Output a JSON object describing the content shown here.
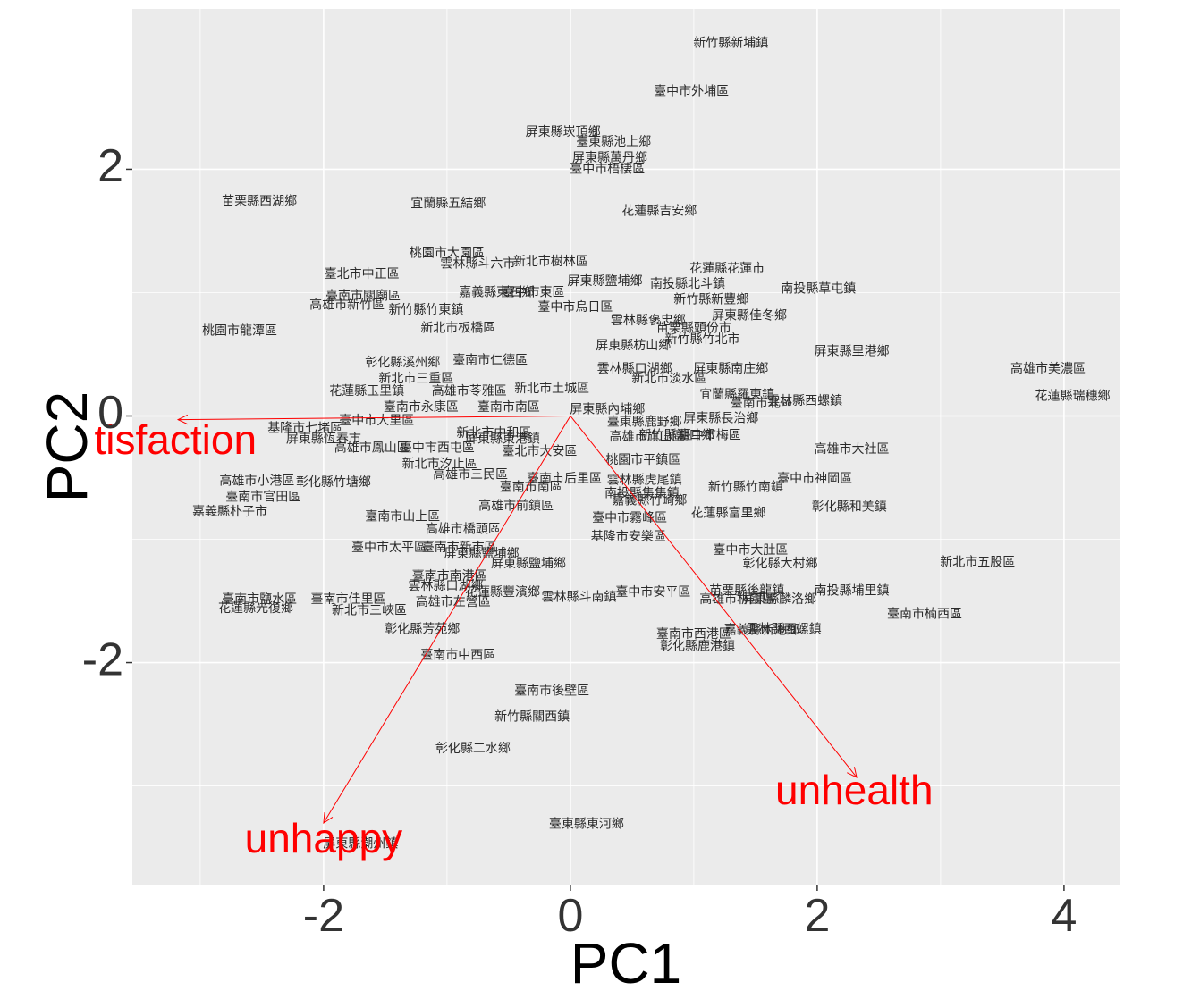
{
  "chart_data": {
    "type": "scatter",
    "xlabel": "PC1",
    "ylabel": "PC2",
    "xlim": [
      -3.55,
      4.45
    ],
    "ylim": [
      -3.8,
      3.3
    ],
    "x_ticks": [
      -2,
      0,
      2,
      4
    ],
    "y_ticks": [
      -2,
      0,
      2
    ],
    "x_minor": [
      -3,
      -1,
      1,
      3
    ],
    "y_minor": [
      -3,
      -1,
      1,
      3
    ],
    "grid": true,
    "background_color": "#ebebeb",
    "grid_color": "#ffffff",
    "arrow_color": "#ff0000",
    "text_color": "#2b2b2b",
    "tick_color": "#333333",
    "points": [
      {
        "x": 1.3,
        "y": 3.02,
        "label": "新竹縣新埔鎮"
      },
      {
        "x": 0.98,
        "y": 2.63,
        "label": "臺中市外埔區"
      },
      {
        "x": -0.06,
        "y": 2.3,
        "label": "屏東縣崁頂鄉"
      },
      {
        "x": 0.35,
        "y": 2.22,
        "label": "臺東縣池上鄉"
      },
      {
        "x": 0.32,
        "y": 2.09,
        "label": "屏東縣萬丹鄉"
      },
      {
        "x": 0.3,
        "y": 2.0,
        "label": "臺中市梧棲區"
      },
      {
        "x": -2.52,
        "y": 1.74,
        "label": "苗栗縣西湖鄉"
      },
      {
        "x": -0.99,
        "y": 1.72,
        "label": "宜蘭縣五結鄉"
      },
      {
        "x": 0.72,
        "y": 1.66,
        "label": "花蓮縣吉安鄉"
      },
      {
        "x": -1.0,
        "y": 1.32,
        "label": "桃園市大園區"
      },
      {
        "x": -0.75,
        "y": 1.23,
        "label": "雲林縣斗六市"
      },
      {
        "x": -0.16,
        "y": 1.25,
        "label": "新北市樹林區"
      },
      {
        "x": 1.27,
        "y": 1.19,
        "label": "花蓮縣花蓮市"
      },
      {
        "x": -1.69,
        "y": 1.15,
        "label": "臺北市中正區"
      },
      {
        "x": 0.28,
        "y": 1.09,
        "label": "屏東縣鹽埔鄉"
      },
      {
        "x": 0.95,
        "y": 1.07,
        "label": "南投縣北斗鎮"
      },
      {
        "x": 2.01,
        "y": 1.03,
        "label": "南投縣草屯鎮"
      },
      {
        "x": -1.68,
        "y": 0.97,
        "label": "臺南市關廟區"
      },
      {
        "x": -0.6,
        "y": 1.0,
        "label": "嘉義縣東石鄉"
      },
      {
        "x": -0.3,
        "y": 1.0,
        "label": "臺中市東區"
      },
      {
        "x": 1.14,
        "y": 0.94,
        "label": "新竹縣新豐鄉"
      },
      {
        "x": -1.81,
        "y": 0.9,
        "label": "高雄市新竹區"
      },
      {
        "x": -1.17,
        "y": 0.86,
        "label": "新竹縣竹東鎮"
      },
      {
        "x": 0.04,
        "y": 0.88,
        "label": "臺中市烏日區"
      },
      {
        "x": 1.45,
        "y": 0.81,
        "label": "屏東縣佳冬鄉"
      },
      {
        "x": 0.63,
        "y": 0.77,
        "label": "雲林縣褒忠鄉"
      },
      {
        "x": -0.91,
        "y": 0.71,
        "label": "新北市板橋區"
      },
      {
        "x": 1.0,
        "y": 0.71,
        "label": "苗栗縣頭份市"
      },
      {
        "x": -2.68,
        "y": 0.69,
        "label": "桃園市龍潭區"
      },
      {
        "x": 0.51,
        "y": 0.57,
        "label": "屏東縣枋山鄉"
      },
      {
        "x": 1.07,
        "y": 0.62,
        "label": "新竹縣竹北市"
      },
      {
        "x": 2.28,
        "y": 0.52,
        "label": "屏東縣里港鄉"
      },
      {
        "x": 3.87,
        "y": 0.38,
        "label": "高雄市美濃區"
      },
      {
        "x": -1.36,
        "y": 0.43,
        "label": "彰化縣溪州鄉"
      },
      {
        "x": -0.65,
        "y": 0.45,
        "label": "臺南市仁德區"
      },
      {
        "x": 0.52,
        "y": 0.38,
        "label": "雲林縣口湖鄉"
      },
      {
        "x": 1.3,
        "y": 0.38,
        "label": "屏東縣南庄鄉"
      },
      {
        "x": 0.8,
        "y": 0.3,
        "label": "新北市淡水區"
      },
      {
        "x": -1.25,
        "y": 0.3,
        "label": "新北市三重區"
      },
      {
        "x": 4.07,
        "y": 0.16,
        "label": "花蓮縣瑞穗鄉"
      },
      {
        "x": -1.65,
        "y": 0.2,
        "label": "花蓮縣玉里鎮"
      },
      {
        "x": -0.82,
        "y": 0.2,
        "label": "高雄市苓雅區"
      },
      {
        "x": -0.15,
        "y": 0.22,
        "label": "新北市土城區"
      },
      {
        "x": 1.35,
        "y": 0.17,
        "label": "宜蘭縣羅東鎮"
      },
      {
        "x": 1.9,
        "y": 0.12,
        "label": "雲林縣西螺鎮"
      },
      {
        "x": 1.55,
        "y": 0.1,
        "label": "臺南市北區"
      },
      {
        "x": -1.21,
        "y": 0.07,
        "label": "臺南市永康區"
      },
      {
        "x": -0.5,
        "y": 0.07,
        "label": "臺南市南區"
      },
      {
        "x": 0.3,
        "y": 0.05,
        "label": "屏東縣內埔鄉"
      },
      {
        "x": -1.57,
        "y": -0.04,
        "label": "臺中市大里區"
      },
      {
        "x": 1.22,
        "y": -0.02,
        "label": "屏東縣長治鄉"
      },
      {
        "x": 0.6,
        "y": -0.05,
        "label": "臺東縣鹿野鄉"
      },
      {
        "x": -2.15,
        "y": -0.1,
        "label": "基隆市七堵區"
      },
      {
        "x": -0.62,
        "y": -0.14,
        "label": "新北市中和區"
      },
      {
        "x": 0.86,
        "y": -0.16,
        "label": "新竹縣湖口鄉"
      },
      {
        "x": 1.13,
        "y": -0.16,
        "label": "臺中市梅區"
      },
      {
        "x": -2.0,
        "y": -0.19,
        "label": "屏東縣恆春市"
      },
      {
        "x": -0.55,
        "y": -0.19,
        "label": "屏東縣東港鎮"
      },
      {
        "x": 0.62,
        "y": -0.17,
        "label": "高雄市旗山區"
      },
      {
        "x": -1.61,
        "y": -0.26,
        "label": "高雄市鳳山區"
      },
      {
        "x": -1.08,
        "y": -0.26,
        "label": "臺中市西屯區"
      },
      {
        "x": -0.25,
        "y": -0.29,
        "label": "臺北市大安區"
      },
      {
        "x": 2.28,
        "y": -0.27,
        "label": "高雄市大社區"
      },
      {
        "x": -1.06,
        "y": -0.39,
        "label": "新北市汐止區"
      },
      {
        "x": 0.59,
        "y": -0.36,
        "label": "桃園市平鎮區"
      },
      {
        "x": -0.81,
        "y": -0.48,
        "label": "高雄市三民區"
      },
      {
        "x": -0.05,
        "y": -0.51,
        "label": "臺南市后里區"
      },
      {
        "x": 0.6,
        "y": -0.52,
        "label": "雲林縣虎尾鎮"
      },
      {
        "x": 1.98,
        "y": -0.51,
        "label": "臺中市神岡區"
      },
      {
        "x": -2.54,
        "y": -0.53,
        "label": "高雄市小港區"
      },
      {
        "x": -1.92,
        "y": -0.54,
        "label": "彰化縣竹塘鄉"
      },
      {
        "x": -0.32,
        "y": -0.58,
        "label": "臺南市南區"
      },
      {
        "x": 1.42,
        "y": -0.58,
        "label": "新竹縣竹南鎮"
      },
      {
        "x": 0.58,
        "y": -0.63,
        "label": "南投縣集集鎮"
      },
      {
        "x": -2.49,
        "y": -0.66,
        "label": "臺南市官田區"
      },
      {
        "x": 0.64,
        "y": -0.69,
        "label": "嘉義縣竹崎鄉"
      },
      {
        "x": -0.44,
        "y": -0.73,
        "label": "高雄市前鎮區"
      },
      {
        "x": 2.26,
        "y": -0.74,
        "label": "彰化縣和美鎮"
      },
      {
        "x": -2.76,
        "y": -0.78,
        "label": "嘉義縣朴子市"
      },
      {
        "x": 1.28,
        "y": -0.79,
        "label": "花蓮縣富里鄉"
      },
      {
        "x": -1.36,
        "y": -0.82,
        "label": "臺南市山上區"
      },
      {
        "x": 0.48,
        "y": -0.83,
        "label": "臺中市霧峰區"
      },
      {
        "x": -0.87,
        "y": -0.92,
        "label": "高雄市橋頭區"
      },
      {
        "x": 0.47,
        "y": -0.98,
        "label": "基隆市安樂區"
      },
      {
        "x": -1.47,
        "y": -1.07,
        "label": "臺中市太平區"
      },
      {
        "x": -0.9,
        "y": -1.07,
        "label": "臺南市新市區"
      },
      {
        "x": -0.72,
        "y": -1.12,
        "label": "屏東縣鹽埔鄉"
      },
      {
        "x": 1.46,
        "y": -1.09,
        "label": "臺中市大肚區"
      },
      {
        "x": 3.3,
        "y": -1.19,
        "label": "新北市五股區"
      },
      {
        "x": -0.34,
        "y": -1.2,
        "label": "屏東縣鹽埔鄉"
      },
      {
        "x": 1.7,
        "y": -1.2,
        "label": "彰化縣大村鄉"
      },
      {
        "x": -0.98,
        "y": -1.3,
        "label": "臺南市南港區"
      },
      {
        "x": -1.01,
        "y": -1.38,
        "label": "雲林縣口湖鄉"
      },
      {
        "x": 0.67,
        "y": -1.43,
        "label": "臺中市安平區"
      },
      {
        "x": 1.43,
        "y": -1.42,
        "label": "苗栗縣後龍鎮"
      },
      {
        "x": 2.28,
        "y": -1.42,
        "label": "南投縣埔里鎮"
      },
      {
        "x": -2.52,
        "y": -1.49,
        "label": "臺南市鹽水區"
      },
      {
        "x": -1.8,
        "y": -1.49,
        "label": "臺南市佳里區"
      },
      {
        "x": -0.55,
        "y": -1.43,
        "label": "花蓮縣豐濱鄉"
      },
      {
        "x": 0.07,
        "y": -1.47,
        "label": "雲林縣斗南鎮"
      },
      {
        "x": 1.35,
        "y": -1.49,
        "label": "高雄市林園區"
      },
      {
        "x": 1.69,
        "y": -1.49,
        "label": "屏東縣麟洛鄉"
      },
      {
        "x": -2.55,
        "y": -1.56,
        "label": "花蓮縣光復鄉"
      },
      {
        "x": -1.63,
        "y": -1.58,
        "label": "新北市三峽區"
      },
      {
        "x": -0.95,
        "y": -1.51,
        "label": "高雄市左營區"
      },
      {
        "x": 2.87,
        "y": -1.61,
        "label": "臺南市楠西區"
      },
      {
        "x": 1.55,
        "y": -1.74,
        "label": "嘉義縣新港鄉"
      },
      {
        "x": 1.73,
        "y": -1.73,
        "label": "雲林縣西螺鎮"
      },
      {
        "x": 1.0,
        "y": -1.77,
        "label": "臺南市西港區"
      },
      {
        "x": -1.2,
        "y": -1.73,
        "label": "彰化縣芳苑鄉"
      },
      {
        "x": 1.03,
        "y": -1.87,
        "label": "彰化縣鹿港鎮"
      },
      {
        "x": -0.91,
        "y": -1.94,
        "label": "臺南市中西區"
      },
      {
        "x": -0.15,
        "y": -2.23,
        "label": "臺南市後壁區"
      },
      {
        "x": -0.31,
        "y": -2.44,
        "label": "新竹縣關西鎮"
      },
      {
        "x": -0.79,
        "y": -2.7,
        "label": "彰化縣二水鄉"
      },
      {
        "x": 0.13,
        "y": -3.31,
        "label": "臺東縣東河鄉"
      },
      {
        "x": -1.7,
        "y": -3.47,
        "label": "屏東縣潮州鎮"
      }
    ],
    "loadings": [
      {
        "name": "tisfaction",
        "x": -3.18,
        "y": -0.03,
        "label_x": -3.2,
        "label_y": -0.22
      },
      {
        "name": "unhappy",
        "x": -2.0,
        "y": -3.3,
        "label_x": -2.0,
        "label_y": -3.45
      },
      {
        "name": "unhealth",
        "x": 2.32,
        "y": -2.93,
        "label_x": 2.3,
        "label_y": -3.06
      }
    ]
  }
}
